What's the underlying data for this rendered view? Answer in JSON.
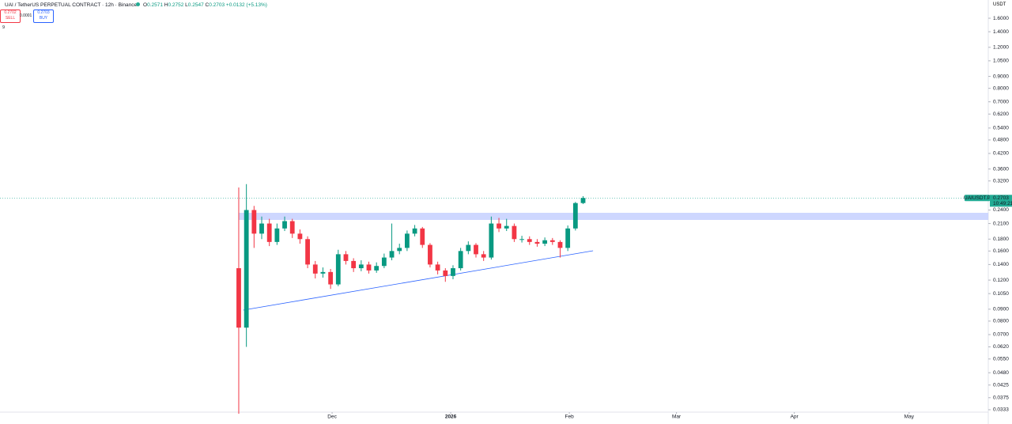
{
  "header": {
    "title": "UAI / TetherUS PERPETUAL CONTRACT · 12h · Binance",
    "ohlc": [
      {
        "label": "O",
        "value": "0.2571"
      },
      {
        "label": "H",
        "value": "0.2752"
      },
      {
        "label": "L",
        "value": "0.2547"
      },
      {
        "label": "C",
        "value": "0.2703"
      }
    ],
    "change": "+0.0132 (+5.13%)",
    "sell_price": "0.2702",
    "sell_label": "SELL",
    "spread": "0.0001",
    "buy_price": "0.2703",
    "buy_label": "BUY",
    "indicator": "9",
    "currency": "USDT"
  },
  "chart_data": {
    "type": "candlestick",
    "log_scale": true,
    "grid": false,
    "up_color": "#089981",
    "down_color": "#f23645",
    "x": [
      0,
      2,
      4,
      6,
      8,
      10,
      12,
      14,
      16,
      18,
      20,
      22,
      24,
      26,
      28,
      30,
      32,
      34,
      36,
      38,
      40,
      42,
      44,
      46,
      48,
      50,
      52,
      54,
      56,
      58,
      60,
      62,
      64,
      66,
      68,
      70,
      72,
      74,
      76,
      78,
      80,
      82,
      84,
      86,
      88,
      90
    ],
    "open": [
      0.135,
      0.075,
      0.24,
      0.19,
      0.21,
      0.175,
      0.2,
      0.215,
      0.19,
      0.18,
      0.14,
      0.128,
      0.13,
      0.115,
      0.155,
      0.145,
      0.135,
      0.14,
      0.132,
      0.138,
      0.15,
      0.16,
      0.165,
      0.19,
      0.2,
      0.17,
      0.14,
      0.132,
      0.125,
      0.135,
      0.16,
      0.17,
      0.155,
      0.15,
      0.21,
      0.2,
      0.205,
      0.18,
      0.18,
      0.175,
      0.172,
      0.178,
      0.175,
      0.165,
      0.2,
      0.2571
    ],
    "high": [
      0.3,
      0.31,
      0.25,
      0.225,
      0.22,
      0.21,
      0.225,
      0.22,
      0.198,
      0.185,
      0.145,
      0.136,
      0.134,
      0.162,
      0.16,
      0.149,
      0.146,
      0.144,
      0.143,
      0.156,
      0.21,
      0.172,
      0.196,
      0.207,
      0.203,
      0.173,
      0.144,
      0.135,
      0.139,
      0.165,
      0.176,
      0.173,
      0.16,
      0.225,
      0.222,
      0.22,
      0.21,
      0.186,
      0.185,
      0.18,
      0.183,
      0.182,
      0.178,
      0.206,
      0.26,
      0.2752
    ],
    "low": [
      0.032,
      0.062,
      0.165,
      0.18,
      0.168,
      0.17,
      0.195,
      0.182,
      0.172,
      0.135,
      0.122,
      0.123,
      0.11,
      0.113,
      0.14,
      0.13,
      0.131,
      0.128,
      0.129,
      0.135,
      0.146,
      0.155,
      0.16,
      0.185,
      0.165,
      0.136,
      0.127,
      0.118,
      0.121,
      0.132,
      0.155,
      0.15,
      0.145,
      0.147,
      0.193,
      0.195,
      0.175,
      0.174,
      0.17,
      0.167,
      0.168,
      0.17,
      0.15,
      0.16,
      0.196,
      0.2547
    ],
    "close": [
      0.075,
      0.24,
      0.19,
      0.21,
      0.175,
      0.2,
      0.215,
      0.19,
      0.18,
      0.14,
      0.128,
      0.13,
      0.115,
      0.155,
      0.145,
      0.135,
      0.14,
      0.132,
      0.138,
      0.15,
      0.16,
      0.165,
      0.19,
      0.2,
      0.17,
      0.14,
      0.132,
      0.125,
      0.135,
      0.16,
      0.17,
      0.155,
      0.15,
      0.21,
      0.2,
      0.205,
      0.18,
      0.18,
      0.175,
      0.172,
      0.178,
      0.175,
      0.165,
      0.2,
      0.2571,
      0.2703
    ],
    "zone": {
      "color": "#c5d0ff",
      "values": [
        0.2176,
        0.2335
      ]
    },
    "trendline": {
      "color": "#2962ff",
      "x": [
        1.2,
        92.6
      ],
      "values": [
        0.0892,
        0.1604
      ]
    },
    "symbol_label": "UAIUSDT.P",
    "countdown": "10:49:21",
    "label_color": "#22ab94",
    "xlim": [
      -62.4,
      195.9
    ],
    "ylim": [
      0.0303,
      1.916
    ],
    "xticks": [
      {
        "value": 24.4,
        "label": "Dec"
      },
      {
        "value": 55.4,
        "label": "2026"
      },
      {
        "value": 86.4,
        "label": "Feb"
      },
      {
        "value": 114.4,
        "label": "Mar"
      },
      {
        "value": 145.2,
        "label": "Apr"
      },
      {
        "value": 175.2,
        "label": "May"
      }
    ],
    "yticks": [
      {
        "value": 1.6,
        "label": "1.6000"
      },
      {
        "value": 1.4,
        "label": "1.4000"
      },
      {
        "value": 1.2,
        "label": "1.2000"
      },
      {
        "value": 1.05,
        "label": "1.0500"
      },
      {
        "value": 0.9,
        "label": "0.9000"
      },
      {
        "value": 0.8,
        "label": "0.8000"
      },
      {
        "value": 0.7,
        "label": "0.7000"
      },
      {
        "value": 0.62,
        "label": "0.6200"
      },
      {
        "value": 0.54,
        "label": "0.5400"
      },
      {
        "value": 0.48,
        "label": "0.4800"
      },
      {
        "value": 0.42,
        "label": "0.4200"
      },
      {
        "value": 0.36,
        "label": "0.3600"
      },
      {
        "value": 0.32,
        "label": "0.3200"
      },
      {
        "value": 0.24,
        "label": "0.2400"
      },
      {
        "value": 0.21,
        "label": "0.2100"
      },
      {
        "value": 0.18,
        "label": "0.1800"
      },
      {
        "value": 0.16,
        "label": "0.1600"
      },
      {
        "value": 0.14,
        "label": "0.1400"
      },
      {
        "value": 0.12,
        "label": "0.1200"
      },
      {
        "value": 0.105,
        "label": "0.1050"
      },
      {
        "value": 0.09,
        "label": "0.0900"
      },
      {
        "value": 0.08,
        "label": "0.0800"
      },
      {
        "value": 0.07,
        "label": "0.0700"
      },
      {
        "value": 0.062,
        "label": "0.0620"
      },
      {
        "value": 0.055,
        "label": "0.0550"
      },
      {
        "value": 0.048,
        "label": "0.0480"
      },
      {
        "value": 0.0425,
        "label": "0.0425"
      },
      {
        "value": 0.0375,
        "label": "0.0375"
      },
      {
        "value": 0.0333,
        "label": "0.0333"
      }
    ]
  }
}
